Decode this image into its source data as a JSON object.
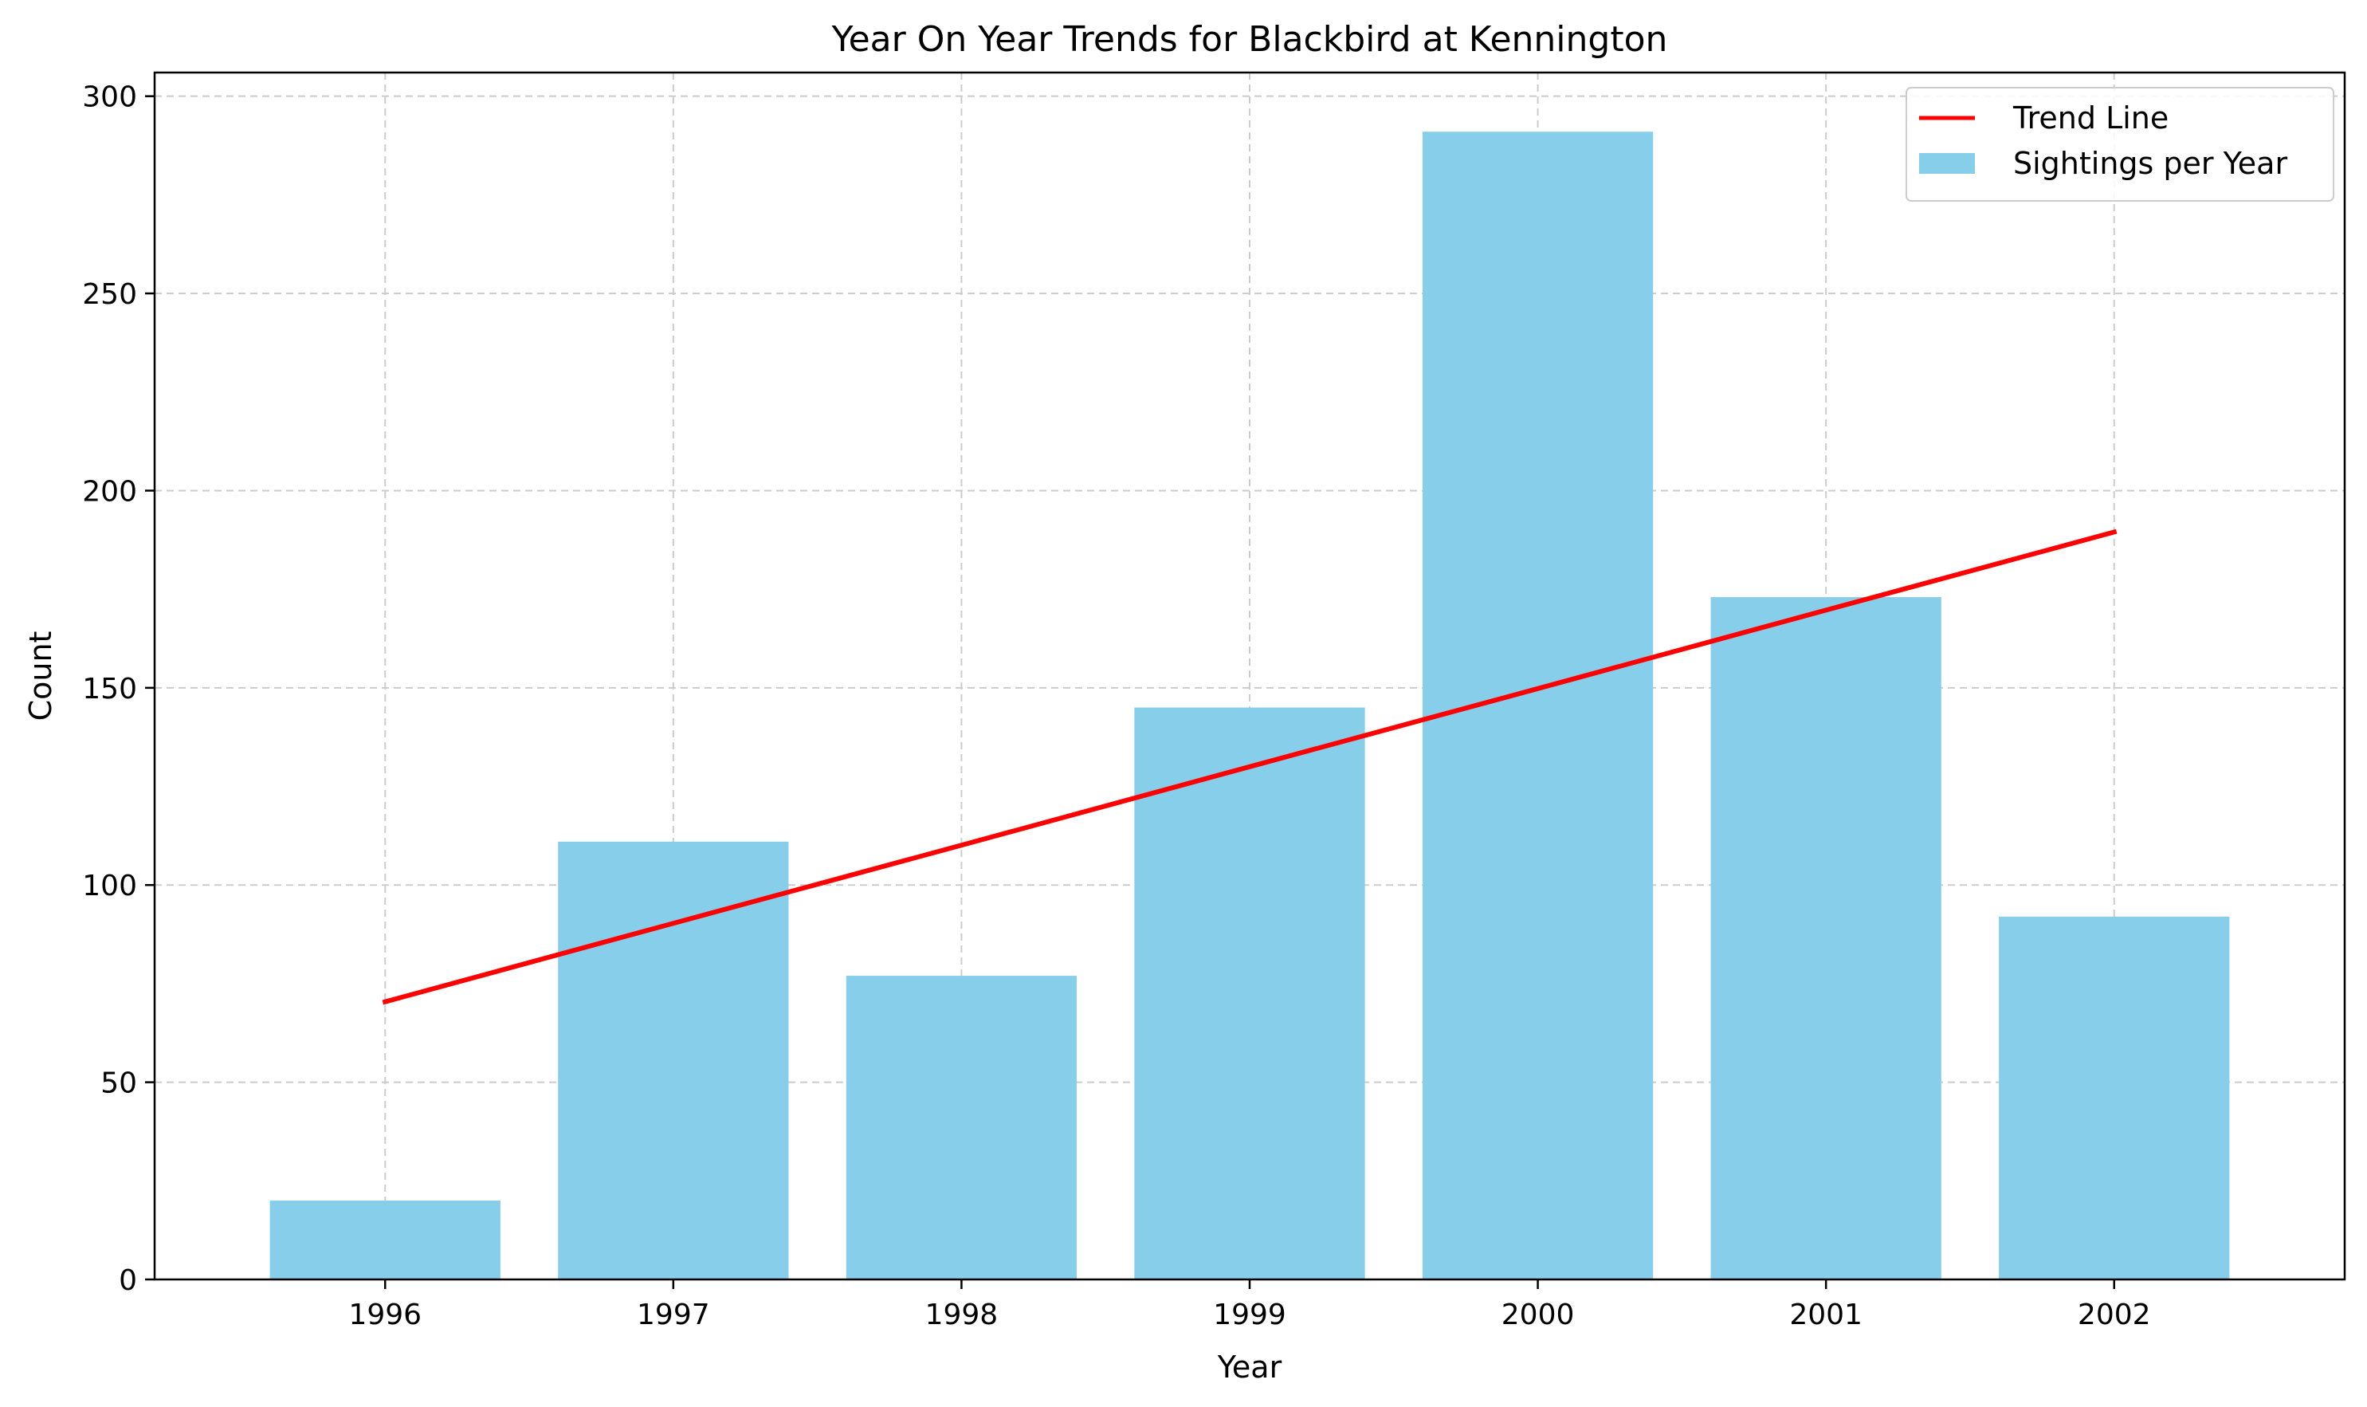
{
  "chart_data": {
    "type": "bar",
    "title": "Year On Year Trends for Blackbird at Kennington",
    "xlabel": "Year",
    "ylabel": "Count",
    "categories": [
      "1996",
      "1997",
      "1998",
      "1999",
      "2000",
      "2001",
      "2002"
    ],
    "series": [
      {
        "name": "Sightings per Year",
        "type": "bar",
        "color": "#87CEEB",
        "values": [
          20,
          111,
          77,
          145,
          291,
          173,
          92
        ]
      },
      {
        "name": "Trend Line",
        "type": "line",
        "color": "#FF0000",
        "values": [
          70.4,
          90.3,
          110.1,
          130.0,
          149.8,
          169.7,
          189.5
        ]
      }
    ],
    "ylim": [
      0,
      306
    ],
    "yticks": [
      0,
      50,
      100,
      150,
      200,
      250,
      300
    ],
    "grid": true,
    "legend_position": "top-right"
  }
}
